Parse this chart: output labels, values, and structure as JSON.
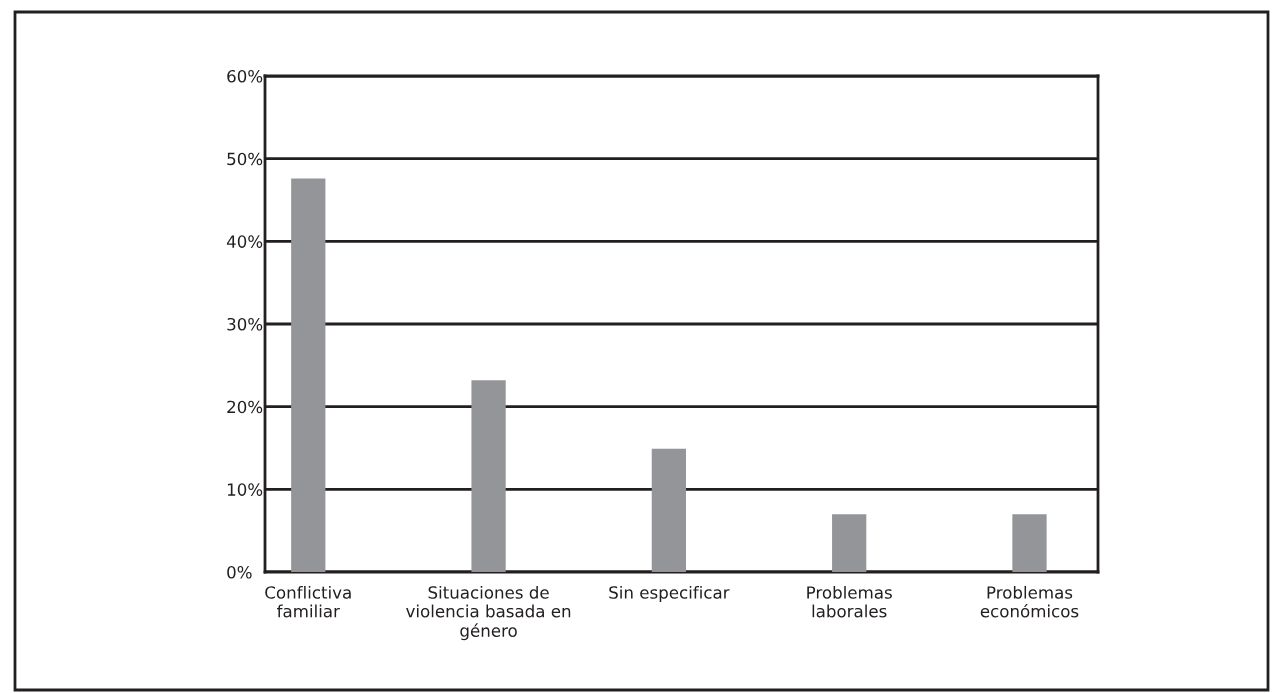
{
  "chart_data": {
    "type": "bar",
    "categories": [
      "Conflictiva\nfamiliar",
      "Situaciones de\nviolencia basada en\ngénero",
      "Sin especificar",
      "Problemas\nlaborales",
      "Problemas\neconómicos"
    ],
    "values": [
      47.6,
      23.2,
      14.9,
      7.0,
      7.0
    ],
    "color": "#939598",
    "ylim": [
      0,
      60
    ],
    "yticks": [
      {
        "value": 0,
        "label": "0%"
      },
      {
        "value": 10,
        "label": "10%"
      },
      {
        "value": 20,
        "label": "20%"
      },
      {
        "value": 30,
        "label": "30%"
      },
      {
        "value": 40,
        "label": "40%"
      },
      {
        "value": 50,
        "label": "50%"
      },
      {
        "value": 60,
        "label": "60%"
      }
    ],
    "grid": "y"
  }
}
